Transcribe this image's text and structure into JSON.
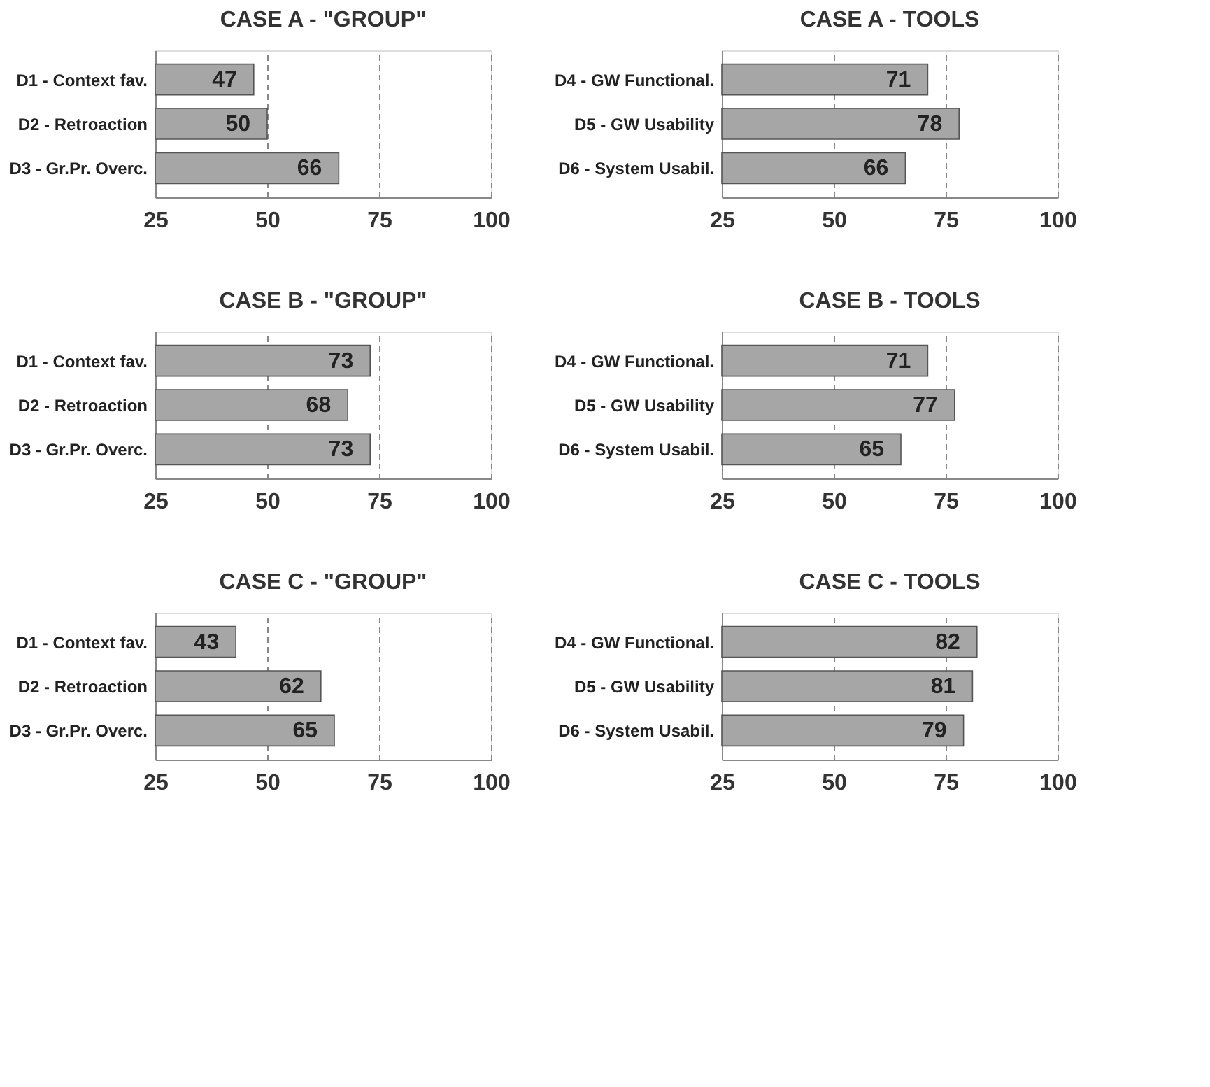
{
  "chart_data": [
    {
      "type": "bar",
      "orientation": "horizontal",
      "title": "CASE A - \"GROUP\"",
      "categories": [
        "D1 - Context fav.",
        "D2 - Retroaction",
        "D3 - Gr.Pr. Overc."
      ],
      "values": [
        47,
        50,
        66
      ],
      "color": "#a6a6a6",
      "xlim": [
        25,
        100
      ],
      "xticks": [
        25,
        50,
        75,
        100
      ],
      "grid": "x",
      "data_labels": true
    },
    {
      "type": "bar",
      "orientation": "horizontal",
      "title": "CASE A - TOOLS",
      "categories": [
        "D4 - GW Functional.",
        "D5 - GW Usability",
        "D6 - System Usabil."
      ],
      "values": [
        71,
        78,
        66
      ],
      "color": "#a6a6a6",
      "xlim": [
        25,
        100
      ],
      "xticks": [
        25,
        50,
        75,
        100
      ],
      "grid": "x",
      "data_labels": true
    },
    {
      "type": "bar",
      "orientation": "horizontal",
      "title": "CASE B - \"GROUP\"",
      "categories": [
        "D1 - Context fav.",
        "D2 - Retroaction",
        "D3 - Gr.Pr. Overc."
      ],
      "values": [
        73,
        68,
        73
      ],
      "color": "#a6a6a6",
      "xlim": [
        25,
        100
      ],
      "xticks": [
        25,
        50,
        75,
        100
      ],
      "grid": "x",
      "data_labels": true
    },
    {
      "type": "bar",
      "orientation": "horizontal",
      "title": "CASE B - TOOLS",
      "categories": [
        "D4 - GW Functional.",
        "D5 - GW Usability",
        "D6 - System Usabil."
      ],
      "values": [
        71,
        77,
        65
      ],
      "color": "#a6a6a6",
      "xlim": [
        25,
        100
      ],
      "xticks": [
        25,
        50,
        75,
        100
      ],
      "grid": "x",
      "data_labels": true
    },
    {
      "type": "bar",
      "orientation": "horizontal",
      "title": "CASE C - \"GROUP\"",
      "categories": [
        "D1 - Context fav.",
        "D2 - Retroaction",
        "D3 - Gr.Pr. Overc."
      ],
      "values": [
        43,
        62,
        65
      ],
      "color": "#a6a6a6",
      "xlim": [
        25,
        100
      ],
      "xticks": [
        25,
        50,
        75,
        100
      ],
      "grid": "x",
      "data_labels": true
    },
    {
      "type": "bar",
      "orientation": "horizontal",
      "title": "CASE C - TOOLS",
      "categories": [
        "D4 - GW Functional.",
        "D5 - GW Usability",
        "D6 - System Usabil."
      ],
      "values": [
        82,
        81,
        79
      ],
      "color": "#a6a6a6",
      "xlim": [
        25,
        100
      ],
      "xticks": [
        25,
        50,
        75,
        100
      ],
      "grid": "x",
      "data_labels": true
    }
  ]
}
